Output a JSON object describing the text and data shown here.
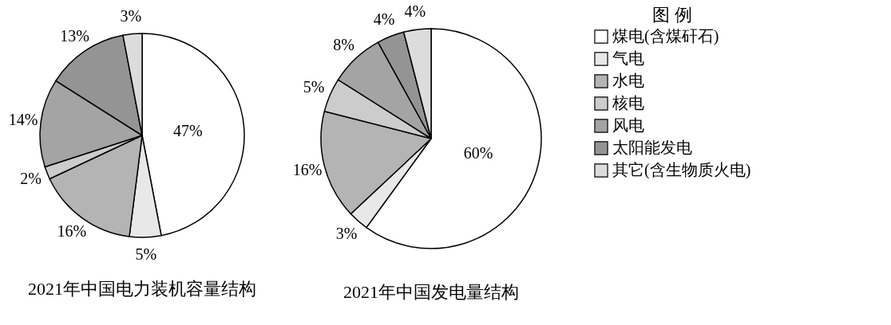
{
  "chart_data": [
    {
      "type": "pie",
      "title": "2021年中国电力装机容量结构",
      "categories": [
        null,
        null,
        null,
        null,
        null,
        null,
        null
      ],
      "values": [
        47,
        5,
        16,
        2,
        14,
        13,
        3
      ],
      "value_labels": [
        "47%",
        "5%",
        "16%",
        "2%",
        "14%",
        "13%",
        "3%"
      ],
      "colors": [
        "#ffffff",
        "#e8e8e8",
        "#b4b4b4",
        "#cccccc",
        "#a4a4a4",
        "#949494",
        "#dcdcdc"
      ],
      "legend": false
    },
    {
      "type": "pie",
      "title": "2021年中国发电量结构",
      "categories": [
        "煤电(含煤矸石)",
        "气电",
        "水电",
        "核电",
        "风电",
        "太阳能发电",
        "其它(含生物质火电)"
      ],
      "values": [
        60,
        3,
        16,
        5,
        8,
        4,
        4
      ],
      "value_labels": [
        "60%",
        "3%",
        "16%",
        "5%",
        "8%",
        "4%",
        "4%"
      ],
      "colors": [
        "#ffffff",
        "#e8e8e8",
        "#b4b4b4",
        "#cccccc",
        "#a4a4a4",
        "#949494",
        "#dcdcdc"
      ],
      "legend": "right",
      "legend_title": "图 例"
    }
  ]
}
